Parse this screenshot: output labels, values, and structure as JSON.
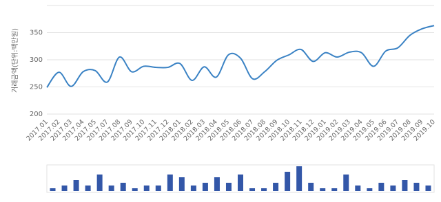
{
  "chart_data": [
    {
      "type": "line",
      "y_label": "거래금액(단위:백만원)",
      "categories": [
        "2017.01",
        "2017.02",
        "2017.03",
        "2017.04",
        "2017.05",
        "2017.07",
        "2017.08",
        "2017.09",
        "2017.10",
        "2017.11",
        "2017.12",
        "2018.01",
        "2018.02",
        "2018.03",
        "2018.04",
        "2018.05",
        "2018.06",
        "2018.07",
        "2018.08",
        "2018.09",
        "2018.10",
        "2018.11",
        "2018.12",
        "2019.01",
        "2019.02",
        "2019.03",
        "2019.04",
        "2019.05",
        "2019.06",
        "2019.07",
        "2019.08",
        "2019.09",
        "2019.10"
      ],
      "values": [
        249,
        277,
        251,
        278,
        280,
        259,
        305,
        278,
        288,
        286,
        286,
        293,
        262,
        287,
        268,
        309,
        303,
        265,
        278,
        299,
        309,
        319,
        297,
        313,
        305,
        314,
        313,
        288,
        316,
        322,
        345,
        357,
        363
      ],
      "color": "#3a82c4",
      "ylim": [
        200,
        400
      ],
      "yticks": [
        200,
        250,
        300,
        350
      ],
      "grid": true
    },
    {
      "type": "bar",
      "values": [
        1,
        2,
        4,
        2,
        6,
        2,
        3,
        1,
        2,
        2,
        6,
        5,
        2,
        3,
        5,
        3,
        6,
        1,
        1,
        3,
        7,
        9,
        3,
        1,
        1,
        6,
        2,
        1,
        3,
        2,
        4,
        3,
        2
      ],
      "color": "#3357a8"
    }
  ]
}
